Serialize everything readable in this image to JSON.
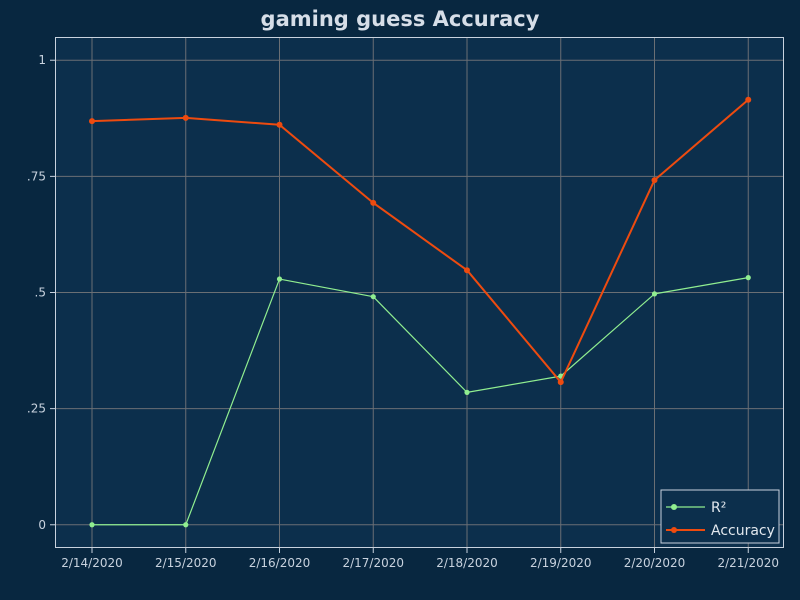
{
  "chart_data": {
    "type": "line",
    "title": "gaming guess Accuracy",
    "xlabel": "",
    "ylabel": "",
    "categories": [
      "2/14/2020",
      "2/15/2020",
      "2/16/2020",
      "2/17/2020",
      "2/18/2020",
      "2/19/2020",
      "2/20/2020",
      "2/21/2020"
    ],
    "ylim": [
      -0.05,
      1.05
    ],
    "yticks": [
      {
        "value": 0,
        "label": "0"
      },
      {
        "value": 0.25,
        "label": ".25"
      },
      {
        "value": 0.5,
        "label": ".5"
      },
      {
        "value": 0.75,
        "label": ".75"
      },
      {
        "value": 1,
        "label": "1"
      }
    ],
    "grid": true,
    "legend_position": "bottom-right",
    "series": [
      {
        "name": "R²",
        "color": "#90ee90",
        "values": [
          0.0,
          0.0,
          0.529,
          0.491,
          0.285,
          0.32,
          0.497,
          0.532
        ]
      },
      {
        "name": "Accuracy",
        "color": "#ee4b0f",
        "values": [
          0.869,
          0.876,
          0.861,
          0.693,
          0.548,
          0.307,
          0.742,
          0.915
        ]
      }
    ]
  },
  "colors": {
    "background": "#082740",
    "plot_background": "#0c2f4c",
    "grid": "#6a6f74",
    "frame": "#c8d2de"
  }
}
